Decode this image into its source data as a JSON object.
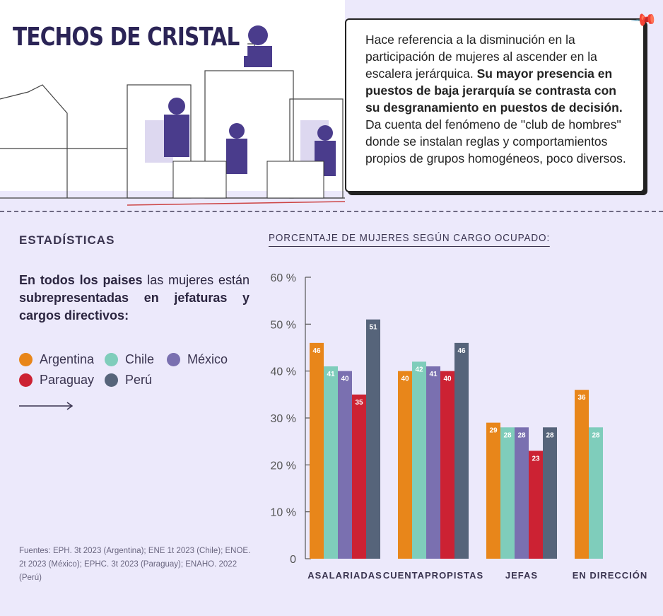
{
  "header": {
    "title": "TECHOS DE CRISTAL"
  },
  "callout": {
    "text_1": "Hace referencia a la disminución en la participación de mujeres al ascender en la escalera jerárquica. ",
    "text_bold": "Su mayor presencia en puestos de baja jerarquía se contrasta con su desgranamiento en puestos de decisión.",
    "text_2": " Da cuenta del fenómeno de \"club de hombres\" donde se instalan reglas y comportamientos propios de grupos homogéneos, poco diversos."
  },
  "left": {
    "section_title": "ESTADÍSTICAS",
    "intro_bold_1": "En todos los paises",
    "intro_1": " las mujeres están ",
    "intro_bold_2": "subrepresentadas en jefaturas y cargos directivos:",
    "sources": "Fuentes: EPH. 3t 2023 (Argentina); ENE 1t 2023 (Chile); ENOE. 2t 2023 (México); EPHC. 3t 2023 (Paraguay); ENAHO. 2022 (Perú)"
  },
  "chart_data": {
    "type": "bar",
    "title": "PORCENTAJE DE MUJERES SEGÚN CARGO OCUPADO:",
    "categories": [
      "ASALARIADAS",
      "CUENTAPROPISTAS",
      "JEFAS",
      "EN DIRECCIÓN"
    ],
    "ylim": [
      0,
      60
    ],
    "yticks": [
      {
        "v": 0,
        "label": "0"
      },
      {
        "v": 10,
        "label": "10 %"
      },
      {
        "v": 20,
        "label": "20 %"
      },
      {
        "v": 30,
        "label": "30 %"
      },
      {
        "v": 40,
        "label": "40 %"
      },
      {
        "v": 50,
        "label": "50 %"
      },
      {
        "v": 60,
        "label": "60 %"
      }
    ],
    "legend_position": "left",
    "series": [
      {
        "name": "Argentina",
        "color": "#e8861a",
        "values": [
          46,
          40,
          29,
          36
        ]
      },
      {
        "name": "Chile",
        "color": "#7fcdbb",
        "values": [
          41,
          42,
          28,
          28
        ]
      },
      {
        "name": "México",
        "color": "#7a70b0",
        "values": [
          40,
          41,
          28,
          null
        ]
      },
      {
        "name": "Paraguay",
        "color": "#cc2233",
        "values": [
          35,
          40,
          23,
          null
        ]
      },
      {
        "name": "Perú",
        "color": "#56647a",
        "values": [
          51,
          46,
          28,
          null
        ]
      }
    ]
  }
}
